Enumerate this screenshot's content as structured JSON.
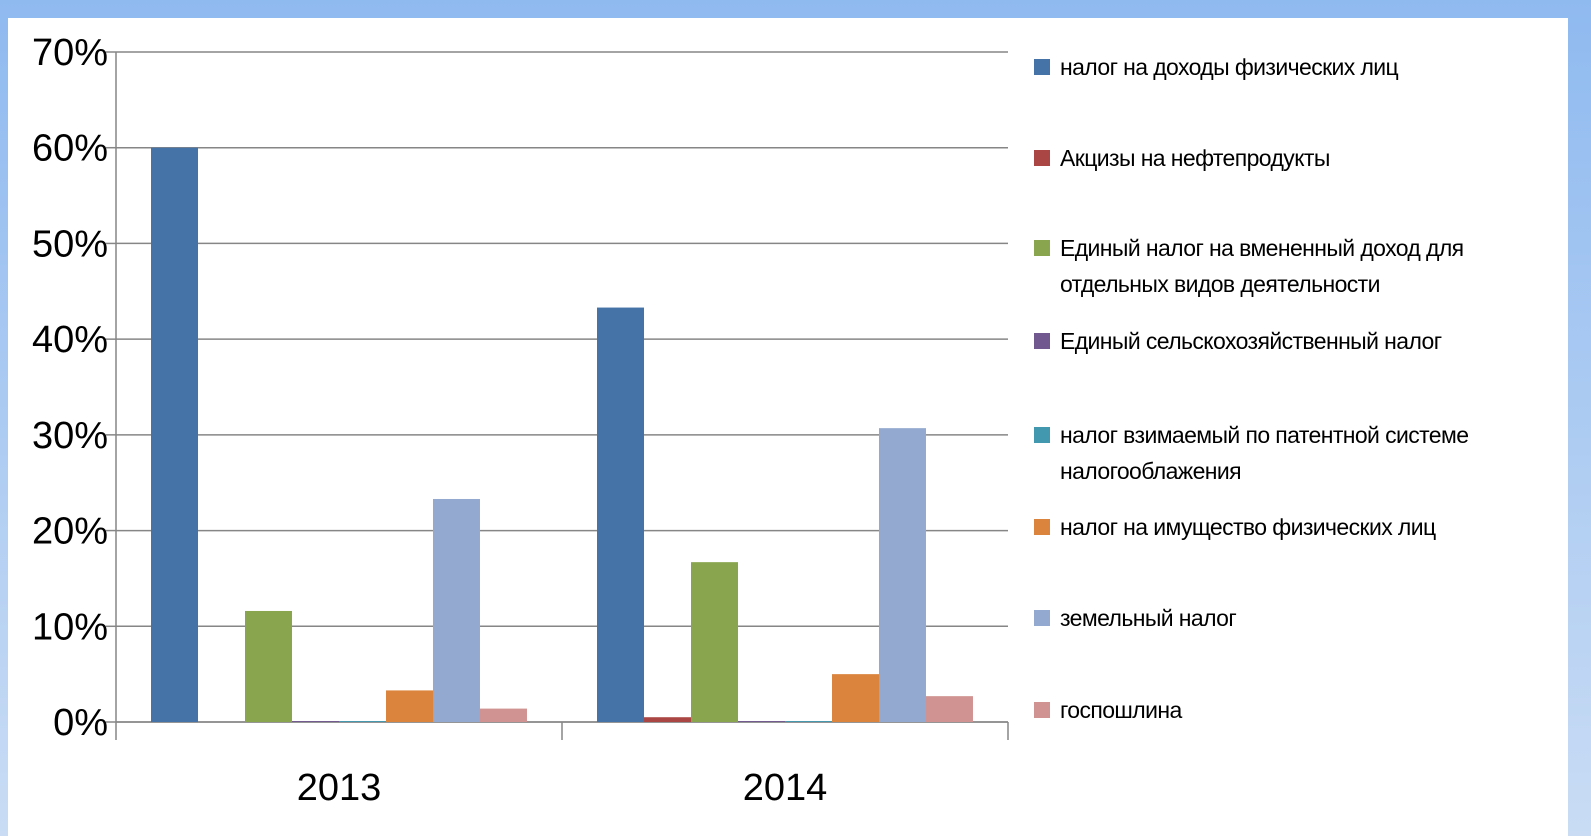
{
  "chart_data": {
    "type": "bar",
    "categories": [
      "2013",
      "2014"
    ],
    "series": [
      {
        "name": "налог на доходы физических лиц",
        "color": "#4572a7",
        "values": [
          60,
          43.3
        ]
      },
      {
        "name": "Акцизы на нефтепродукты",
        "color": "#aa4643",
        "values": [
          0,
          0.5
        ]
      },
      {
        "name": "Единый налог на вмененный доход для отдельных видов деятельности",
        "color": "#89a54e",
        "values": [
          11.6,
          16.7
        ]
      },
      {
        "name": "Единый сельскохозяйственный налог",
        "color": "#71588f",
        "values": [
          0.1,
          0.1
        ]
      },
      {
        "name": "налог взимаемый по патентной системе налогооблажения",
        "color": "#4198af",
        "values": [
          0.1,
          0.1
        ]
      },
      {
        "name": "налог на имущество физических лиц",
        "color": "#db843d",
        "values": [
          3.3,
          5.0
        ]
      },
      {
        "name": "земельный налог",
        "color": "#93a9cf",
        "values": [
          23.3,
          30.7
        ]
      },
      {
        "name": "госпошлина",
        "color": "#d19392",
        "values": [
          1.4,
          2.7
        ]
      }
    ],
    "ylim": [
      0,
      70
    ],
    "yticks": [
      {
        "value": 0,
        "label": "0%"
      },
      {
        "value": 10,
        "label": "10%"
      },
      {
        "value": 20,
        "label": "20%"
      },
      {
        "value": 30,
        "label": "30%"
      },
      {
        "value": 40,
        "label": "40%"
      },
      {
        "value": 50,
        "label": "50%"
      },
      {
        "value": 60,
        "label": "60%"
      },
      {
        "value": 70,
        "label": "70%"
      }
    ],
    "grid": true,
    "legend": "right"
  }
}
